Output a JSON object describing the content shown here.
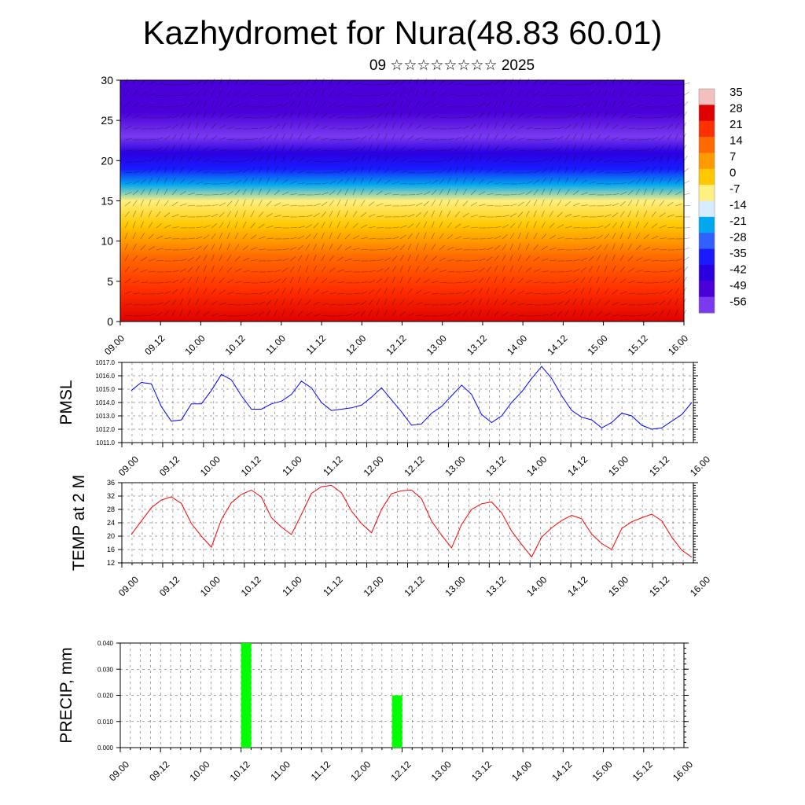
{
  "title": "Kazhydromet for Nura(48.83 60.01)",
  "subtitle": "09 ☆☆☆☆☆☆☆☆ 2025",
  "time_ticks": [
    "09.00",
    "09.12",
    "10.00",
    "10.12",
    "11.00",
    "11.12",
    "12.00",
    "12.12",
    "13.00",
    "13.12",
    "14.00",
    "14.12",
    "15.00",
    "15.12",
    "16.00"
  ],
  "chart_data": [
    {
      "type": "heatmap",
      "title": "",
      "xlabel": "",
      "ylabel": "",
      "xlim": [
        "09.00",
        "16.00"
      ],
      "ylim": [
        0,
        30
      ],
      "yticks": [
        0,
        5,
        10,
        15,
        20,
        25,
        30
      ],
      "colorbar": {
        "labels": [
          "35",
          "28",
          "21",
          "14",
          "7",
          "0",
          "-7",
          "-14",
          "-21",
          "-28",
          "-35",
          "-42",
          "-49",
          "-56"
        ],
        "colors": [
          "#f3c0c0",
          "#e00000",
          "#ff3000",
          "#ff6a00",
          "#ff9a00",
          "#ffc800",
          "#fff080",
          "#d8ecff",
          "#00a8f0",
          "#3060ff",
          "#1a1aff",
          "#2a00e0",
          "#4a00d8",
          "#7a3af0"
        ]
      },
      "temperature_profile": {
        "heights": [
          0,
          4,
          8,
          12,
          15,
          17,
          19,
          21,
          23,
          26,
          30
        ],
        "values": [
          28,
          24,
          14,
          0,
          -8,
          -20,
          -35,
          -45,
          -56,
          -52,
          -48
        ]
      },
      "overlay": "wind barbs"
    },
    {
      "type": "line",
      "ylabel": "PMSL",
      "ylim": [
        1011.0,
        1017.0
      ],
      "ytick_labels": [
        "1011.0",
        "1012.0",
        "1013.0",
        "1014.0",
        "1015.0",
        "1016.0",
        "1017.0"
      ],
      "color": "#0000ff",
      "x_step_hours": 3,
      "values": [
        1014.9,
        1015.5,
        1015.4,
        1013.7,
        1012.6,
        1012.7,
        1013.9,
        1013.9,
        1014.9,
        1016.1,
        1015.7,
        1014.5,
        1013.5,
        1013.5,
        1013.9,
        1014.1,
        1014.6,
        1015.6,
        1015.1,
        1014.0,
        1013.4,
        1013.5,
        1013.6,
        1013.8,
        1014.4,
        1015.1,
        1014.2,
        1013.3,
        1012.3,
        1012.4,
        1013.2,
        1013.7,
        1014.5,
        1015.3,
        1014.6,
        1013.1,
        1012.5,
        1013.0,
        1014.0,
        1014.8,
        1015.8,
        1016.7,
        1015.8,
        1014.5,
        1013.4,
        1012.9,
        1012.7,
        1012.1,
        1012.5,
        1013.2,
        1013.0,
        1012.3,
        1012.0,
        1012.1,
        1012.6,
        1013.1,
        1014.0
      ]
    },
    {
      "type": "line",
      "ylabel": "TEMP at 2 M",
      "ylim": [
        12,
        36
      ],
      "ytick_labels": [
        "12",
        "16",
        "20",
        "24",
        "28",
        "32",
        "36"
      ],
      "color": "#ff0000",
      "x_step_hours": 3,
      "values": [
        20.5,
        24.5,
        28.5,
        30.8,
        31.8,
        29.8,
        23.8,
        20.0,
        16.7,
        25.0,
        30.0,
        32.5,
        33.8,
        31.7,
        25.5,
        22.7,
        20.5,
        26.5,
        32.8,
        34.8,
        35.2,
        33.0,
        27.5,
        23.8,
        21.0,
        28.0,
        32.7,
        33.6,
        33.8,
        31.2,
        24.5,
        20.3,
        16.5,
        23.5,
        28.0,
        29.7,
        30.2,
        27.0,
        21.5,
        17.5,
        13.8,
        19.7,
        22.5,
        24.7,
        26.2,
        25.2,
        20.6,
        17.8,
        16.0,
        22.3,
        24.3,
        25.5,
        26.6,
        24.6,
        19.7,
        15.8,
        13.7
      ]
    },
    {
      "type": "bar",
      "ylabel": "PRECIP, mm",
      "ylim": [
        0,
        0.04
      ],
      "ytick_labels": [
        "0.000",
        "0.010",
        "0.020",
        "0.030",
        "0.040"
      ],
      "color": "#00ff00",
      "bars": [
        {
          "x": "10.12",
          "value": 0.04
        },
        {
          "x": "12.09",
          "value": 0.02
        }
      ]
    }
  ]
}
